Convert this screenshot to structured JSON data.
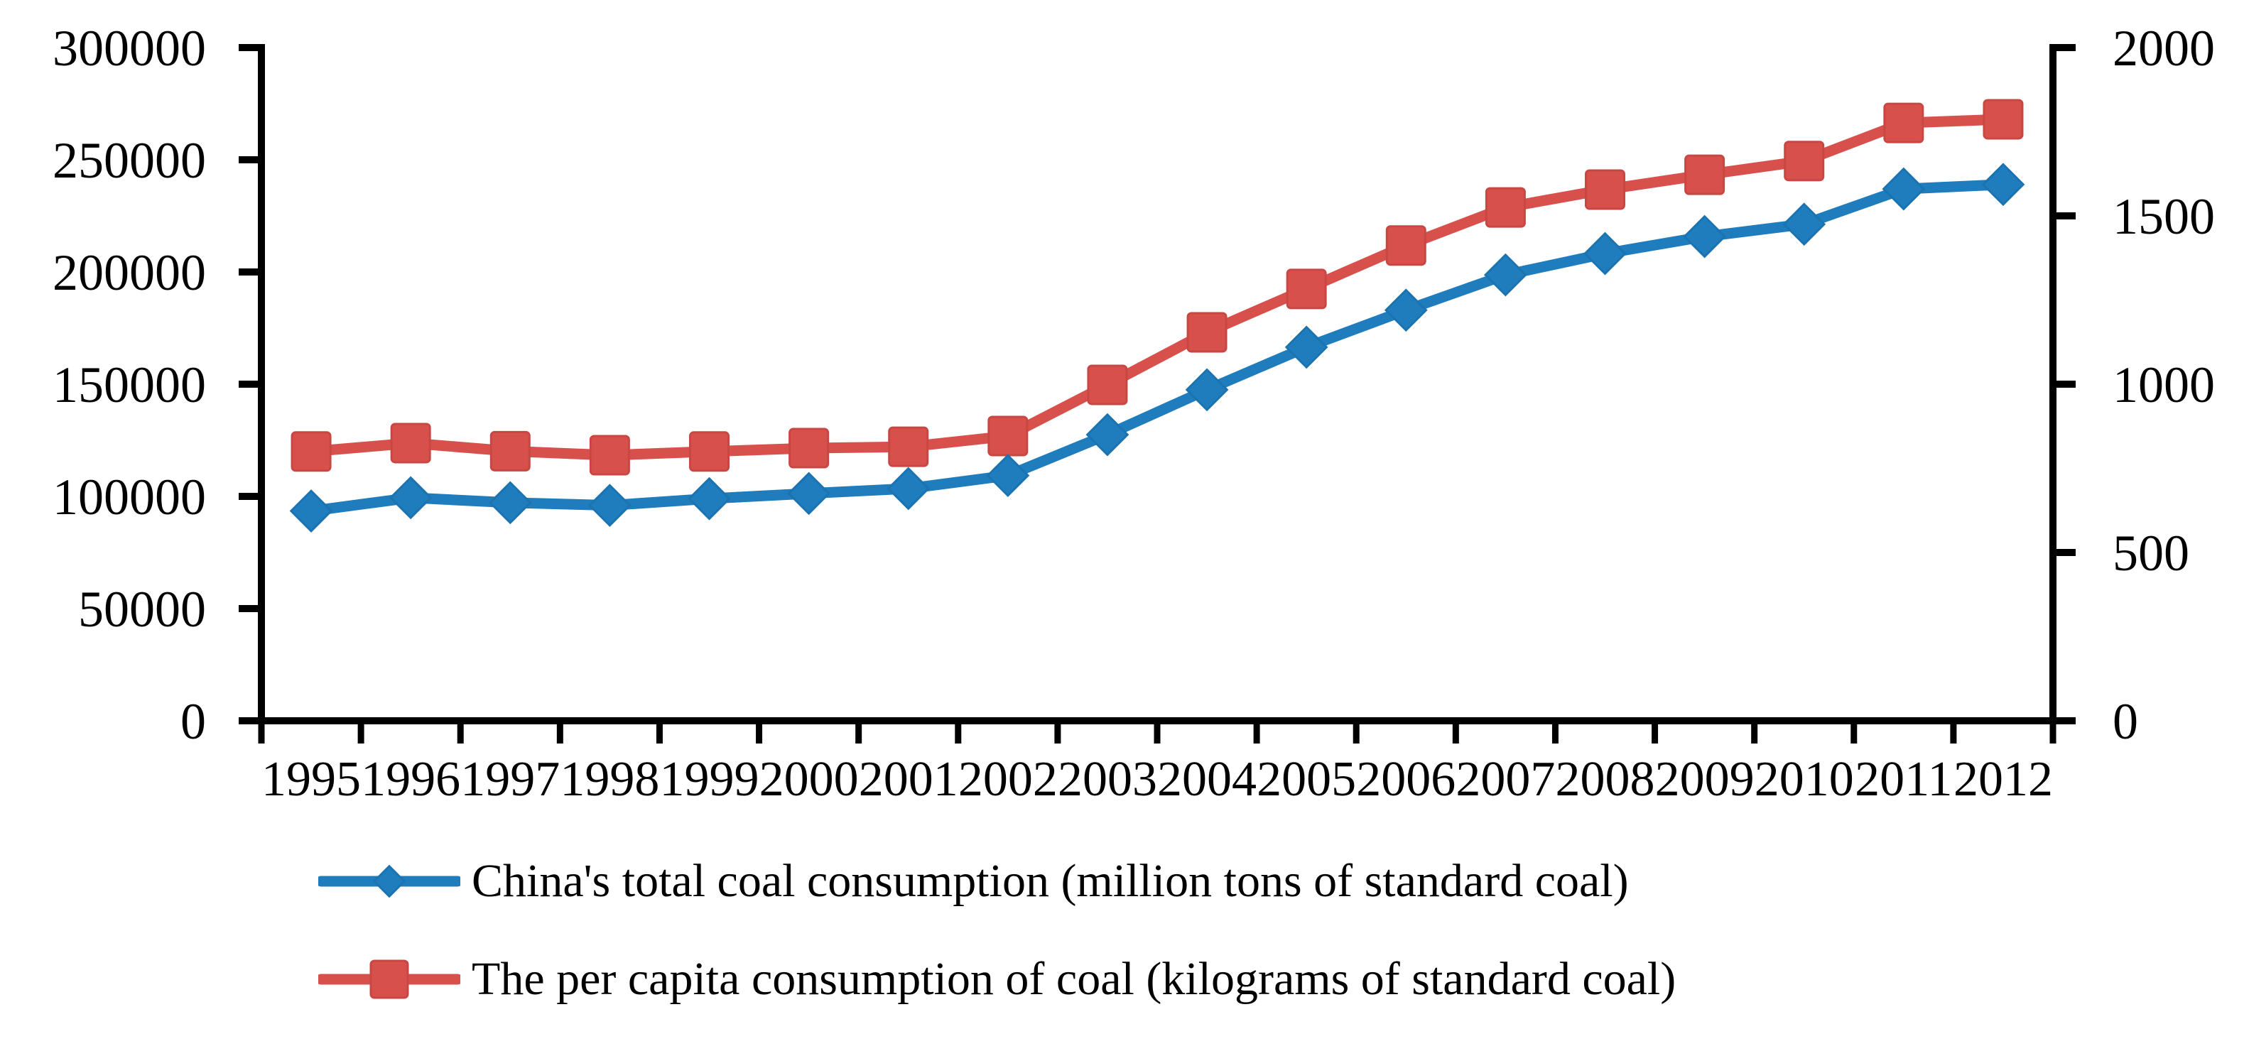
{
  "chart_data": {
    "type": "line",
    "x": [
      "1995",
      "1996",
      "1997",
      "1998",
      "1999",
      "2000",
      "2001",
      "2002",
      "2003",
      "2004",
      "2005",
      "2006",
      "2007",
      "2008",
      "2009",
      "2010",
      "2011",
      "2012"
    ],
    "series": [
      {
        "name": "China's total coal consumption (million tons of standard coal)",
        "axis": "left",
        "color": "#1f7cbd",
        "edge_color": "#1b73b0",
        "marker": "diamond",
        "values": [
          93500,
          99400,
          97200,
          96000,
          99000,
          101300,
          103500,
          109300,
          127500,
          147500,
          166500,
          183000,
          198700,
          208200,
          215800,
          221300,
          237000,
          239000
        ]
      },
      {
        "name": "The per capita consumption of coal (kilograms of standard coal)",
        "axis": "right",
        "color": "#d8504c",
        "edge_color": "#c94743",
        "marker": "square",
        "values": [
          800,
          825,
          801,
          789,
          800,
          810,
          814,
          846,
          998,
          1154,
          1283,
          1412,
          1525,
          1578,
          1622,
          1663,
          1776,
          1787
        ]
      }
    ],
    "left_axis": {
      "min": 0,
      "max": 300000,
      "step": 50000,
      "tick_labels": [
        "0",
        "50000",
        "100000",
        "150000",
        "200000",
        "250000",
        "300000"
      ]
    },
    "right_axis": {
      "min": 0,
      "max": 2000,
      "step": 500,
      "tick_labels": [
        "0",
        "500",
        "1000",
        "1500",
        "2000"
      ]
    },
    "grid": false,
    "legend_position": "bottom-left",
    "background": "#ffffff",
    "axis_color": "#000000",
    "text_color": "#000000"
  }
}
